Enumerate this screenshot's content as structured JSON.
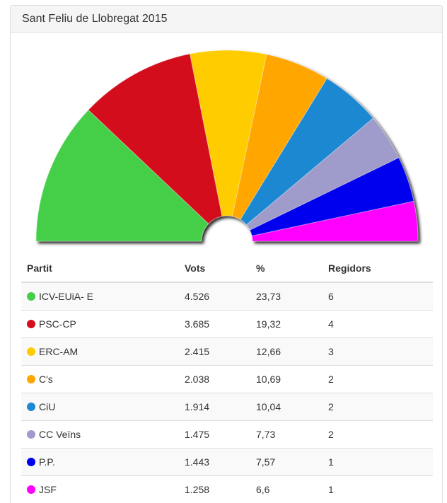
{
  "title": "Sant Feliu de Llobregat 2015",
  "table": {
    "headers": {
      "party": "Partit",
      "votes": "Vots",
      "pct": "%",
      "seats": "Regidors"
    },
    "rows": [
      {
        "party": "ICV-EUiA- E",
        "votes": "4.526",
        "pct": "23,73",
        "seats": "6",
        "color": "#44cf49"
      },
      {
        "party": "PSC-CP",
        "votes": "3.685",
        "pct": "19,32",
        "seats": "4",
        "color": "#d40f1b"
      },
      {
        "party": "ERC-AM",
        "votes": "2.415",
        "pct": "12,66",
        "seats": "3",
        "color": "#ffcc00"
      },
      {
        "party": "C's",
        "votes": "2.038",
        "pct": "10,69",
        "seats": "2",
        "color": "#ffa600"
      },
      {
        "party": "CiU",
        "votes": "1.914",
        "pct": "10,04",
        "seats": "2",
        "color": "#1e88d2"
      },
      {
        "party": "CC Veïns",
        "votes": "1.475",
        "pct": "7,73",
        "seats": "2",
        "color": "#9f9ccb"
      },
      {
        "party": "P.P.",
        "votes": "1.443",
        "pct": "7,57",
        "seats": "1",
        "color": "#0000ee"
      },
      {
        "party": "JSF",
        "votes": "1.258",
        "pct": "6,6",
        "seats": "1",
        "color": "#ff00ff"
      }
    ]
  },
  "chart_data": {
    "type": "pie",
    "subtype": "semicircle",
    "categories": [
      "ICV-EUiA- E",
      "PSC-CP",
      "ERC-AM",
      "C's",
      "CiU",
      "CC Veïns",
      "P.P.",
      "JSF"
    ],
    "values": [
      4526,
      3685,
      2415,
      2038,
      1914,
      1475,
      1443,
      1258
    ],
    "percent": [
      23.73,
      19.32,
      12.66,
      10.69,
      10.04,
      7.73,
      7.57,
      6.6
    ],
    "colors": [
      "#44cf49",
      "#d40f1b",
      "#ffcc00",
      "#ffa600",
      "#1e88d2",
      "#9f9ccb",
      "#0000ee",
      "#ff00ff"
    ]
  }
}
